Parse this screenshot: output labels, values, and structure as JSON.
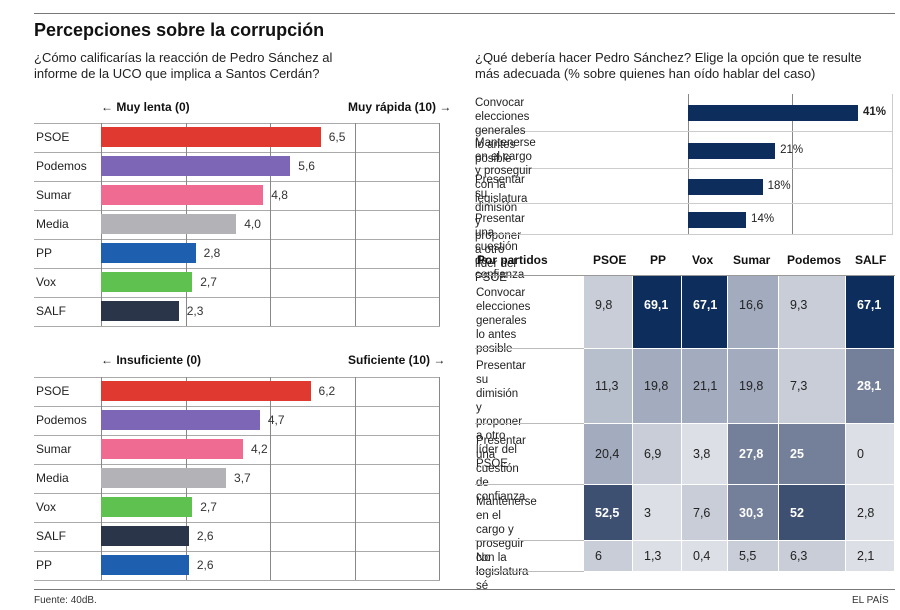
{
  "title": "Percepciones sobre la corrupción",
  "left_question": [
    "¿Cómo calificarías la reacción de Pedro Sánchez al",
    "informe de la UCO que implica a Santos Cerdán?"
  ],
  "right_question": [
    "¿Qué debería hacer Pedro Sánchez? Elige la opción que te resulte",
    "más adecuada (% sobre quienes han oído hablar del caso)"
  ],
  "colors": {
    "PSOE": "#e03a30",
    "Podemos": "#7e66b6",
    "Sumar": "#ef6b92",
    "Media": "#b2b2b7",
    "PP": "#1f5fb0",
    "Vox": "#5ec150",
    "SALF": "#2a354a",
    "navy": "#0d2d5c"
  },
  "footer": {
    "source": "Fuente: 40dB.",
    "brand": "EL PAÍS"
  },
  "chart_data": [
    {
      "type": "bar",
      "orientation": "horizontal",
      "axis_left": "← Muy lenta (0)",
      "axis_right": "Muy rápida (10) →",
      "xlim": [
        0,
        10
      ],
      "categories": [
        "PSOE",
        "Podemos",
        "Sumar",
        "Media",
        "PP",
        "Vox",
        "SALF"
      ],
      "values": [
        6.5,
        5.6,
        4.8,
        4.0,
        2.8,
        2.7,
        2.3
      ],
      "labels": [
        "6,5",
        "5,6",
        "4,8",
        "4,0",
        "2,8",
        "2,7",
        "2,3"
      ]
    },
    {
      "type": "bar",
      "orientation": "horizontal",
      "axis_left": "← Insuficiente (0)",
      "axis_right": "Suficiente (10) →",
      "xlim": [
        0,
        10
      ],
      "categories": [
        "PSOE",
        "Podemos",
        "Sumar",
        "Media",
        "Vox",
        "SALF",
        "PP"
      ],
      "values": [
        6.2,
        4.7,
        4.2,
        3.7,
        2.7,
        2.6,
        2.6
      ],
      "labels": [
        "6,2",
        "4,7",
        "4,2",
        "3,7",
        "2,7",
        "2,6",
        "2,6"
      ]
    },
    {
      "type": "bar",
      "orientation": "horizontal",
      "unit": "%",
      "categories": [
        [
          "Convocar elecciones",
          "generales lo antes posible"
        ],
        [
          "Mantenerse en el cargo y proseguir",
          "con la legislatura"
        ],
        [
          "Presentar su dimisión y proponer",
          "a otro líder del PSOE"
        ],
        [
          "Presentar una cuestión de confianza"
        ]
      ],
      "values": [
        41,
        21,
        18,
        14
      ],
      "labels": [
        "41%",
        "21%",
        "18%",
        "14%"
      ]
    },
    {
      "type": "table",
      "title": "Por partidos",
      "columns": [
        "PSOE",
        "PP",
        "Vox",
        "Sumar",
        "Podemos",
        "SALF"
      ],
      "rows": [
        {
          "label": [
            "Convocar",
            "elecciones",
            "generales lo antes",
            "posible"
          ],
          "values": [
            9.8,
            69.1,
            67.1,
            16.6,
            9.3,
            67.1
          ],
          "labels": [
            "9,8",
            "69,1",
            "67,1",
            "16,6",
            "9,3",
            "67,1"
          ]
        },
        {
          "label": [
            "Presentar su",
            "dimisión y",
            "proponer a otro",
            "líder del PSOE"
          ],
          "values": [
            11.3,
            19.8,
            21.1,
            19.8,
            7.3,
            28.1
          ],
          "labels": [
            "11,3",
            "19,8",
            "21,1",
            "19,8",
            "7,3",
            "28,1"
          ]
        },
        {
          "label": [
            "Presentar una",
            "cuestión de",
            "confianza"
          ],
          "values": [
            20.4,
            6.9,
            3.8,
            27.8,
            25,
            0
          ],
          "labels": [
            "20,4",
            "6,9",
            "3,8",
            "27,8",
            "25",
            "0"
          ]
        },
        {
          "label": [
            "Mantenerse en el",
            "cargo y proseguir",
            "con la legislatura"
          ],
          "values": [
            52.5,
            3,
            7.6,
            30.3,
            52,
            2.8
          ],
          "labels": [
            "52,5",
            "3",
            "7,6",
            "30,3",
            "52",
            "2,8"
          ]
        },
        {
          "label": [
            "No lo sé"
          ],
          "values": [
            6,
            1.3,
            0.4,
            5.5,
            6.3,
            2.1
          ],
          "labels": [
            "6",
            "1,3",
            "0,4",
            "5,5",
            "6,3",
            "2,1"
          ]
        }
      ]
    }
  ]
}
